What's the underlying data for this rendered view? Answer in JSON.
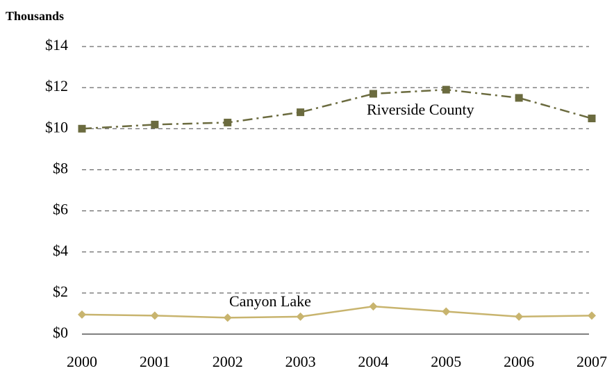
{
  "chart_data": {
    "type": "line",
    "y_axis_label": "Thousands",
    "categories": [
      "2000",
      "2001",
      "2002",
      "2003",
      "2004",
      "2005",
      "2006",
      "2007"
    ],
    "series": [
      {
        "name": "Riverside County",
        "color": "#6b6b3f",
        "marker": "square",
        "dash": "dash-dot",
        "values": [
          10.0,
          10.2,
          10.3,
          10.8,
          11.7,
          11.9,
          11.5,
          10.5
        ]
      },
      {
        "name": "Canyon Lake",
        "color": "#c8b46e",
        "marker": "diamond",
        "dash": "solid",
        "values": [
          0.95,
          0.9,
          0.8,
          0.85,
          1.35,
          1.1,
          0.85,
          0.9
        ]
      }
    ],
    "ylim": [
      0,
      14
    ],
    "yticks": [
      {
        "value": 0,
        "label": "$0"
      },
      {
        "value": 2,
        "label": "$2"
      },
      {
        "value": 4,
        "label": "$4"
      },
      {
        "value": 6,
        "label": "$6"
      },
      {
        "value": 8,
        "label": "$8"
      },
      {
        "value": 10,
        "label": "$10"
      },
      {
        "value": 12,
        "label": "$12"
      },
      {
        "value": 14,
        "label": "$14"
      }
    ],
    "grid": true
  }
}
